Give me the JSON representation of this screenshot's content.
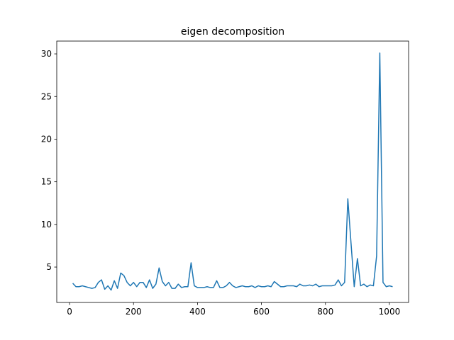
{
  "chart_data": {
    "type": "line",
    "title": "eigen decomposition",
    "x": [
      10,
      20,
      30,
      40,
      50,
      60,
      70,
      80,
      90,
      100,
      110,
      120,
      130,
      140,
      150,
      160,
      170,
      180,
      190,
      200,
      210,
      220,
      230,
      240,
      250,
      260,
      270,
      280,
      290,
      300,
      310,
      320,
      330,
      340,
      350,
      360,
      370,
      380,
      390,
      400,
      410,
      420,
      430,
      440,
      450,
      460,
      470,
      480,
      490,
      500,
      510,
      520,
      530,
      540,
      550,
      560,
      570,
      580,
      590,
      600,
      610,
      620,
      630,
      640,
      650,
      660,
      670,
      680,
      690,
      700,
      710,
      720,
      730,
      740,
      750,
      760,
      770,
      780,
      790,
      800,
      810,
      820,
      830,
      840,
      850,
      860,
      870,
      880,
      890,
      900,
      910,
      920,
      930,
      940,
      950,
      960,
      970,
      980,
      990,
      1000,
      1010
    ],
    "series": [
      {
        "color": "#1f77b4",
        "values": [
          3.1,
          2.7,
          2.7,
          2.8,
          2.7,
          2.6,
          2.5,
          2.6,
          3.2,
          3.5,
          2.4,
          2.8,
          2.3,
          3.4,
          2.5,
          4.3,
          4.0,
          3.2,
          2.8,
          3.2,
          2.7,
          3.2,
          3.2,
          2.6,
          3.5,
          2.5,
          3.0,
          4.9,
          3.3,
          2.8,
          3.2,
          2.5,
          2.5,
          3.0,
          2.6,
          2.7,
          2.7,
          5.5,
          2.8,
          2.6,
          2.6,
          2.6,
          2.7,
          2.6,
          2.6,
          3.4,
          2.6,
          2.6,
          2.8,
          3.2,
          2.8,
          2.6,
          2.7,
          2.8,
          2.7,
          2.7,
          2.8,
          2.6,
          2.8,
          2.7,
          2.7,
          2.8,
          2.7,
          3.3,
          3.0,
          2.7,
          2.7,
          2.8,
          2.8,
          2.8,
          2.7,
          3.0,
          2.8,
          2.8,
          2.9,
          2.8,
          3.0,
          2.7,
          2.8,
          2.8,
          2.8,
          2.8,
          2.9,
          3.5,
          2.8,
          3.2,
          13.0,
          7.8,
          2.7,
          6.0,
          2.8,
          3.0,
          2.7,
          2.9,
          2.8,
          6.3,
          30.1,
          3.2,
          2.7,
          2.8,
          2.7
        ]
      }
    ],
    "xlim": [
      -40,
      1060
    ],
    "ylim": [
      0.85,
      31.5
    ],
    "xticks": [
      0,
      200,
      400,
      600,
      800,
      1000
    ],
    "yticks": [
      5,
      10,
      15,
      20,
      25,
      30
    ]
  }
}
